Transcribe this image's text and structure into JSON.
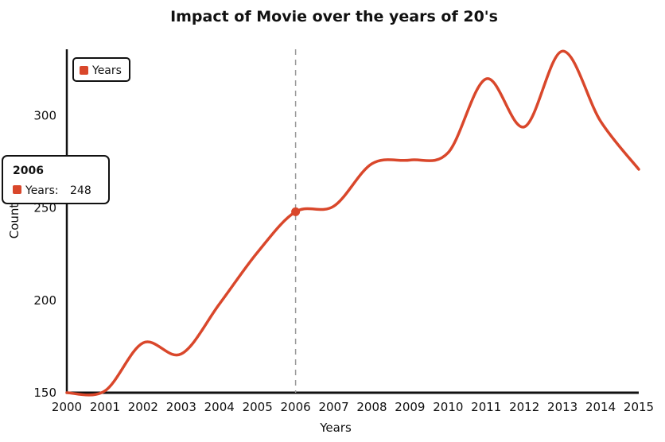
{
  "chart_data": {
    "type": "line",
    "title": "Impact of Movie over the years of 20's",
    "xlabel": "Years",
    "ylabel": "Count",
    "x": [
      "2000",
      "2001",
      "2002",
      "2003",
      "2004",
      "2005",
      "2006",
      "2007",
      "2008",
      "2009",
      "2010",
      "2011",
      "2012",
      "2013",
      "2014",
      "2015"
    ],
    "series": [
      {
        "name": "Years",
        "color": "#d9472b",
        "values": [
          150,
          151,
          177,
          171,
          198,
          226,
          248,
          251,
          274,
          276,
          280,
          320,
          294,
          335,
          297,
          271
        ]
      }
    ],
    "ylim": [
      150,
      336
    ],
    "yticks": [
      150,
      200,
      250,
      300
    ],
    "grid": false,
    "legend": {
      "position": "top-left",
      "label": "Years"
    },
    "hover": {
      "x": "2006",
      "title": "2006",
      "series_label": "Years:",
      "value": "248"
    }
  }
}
